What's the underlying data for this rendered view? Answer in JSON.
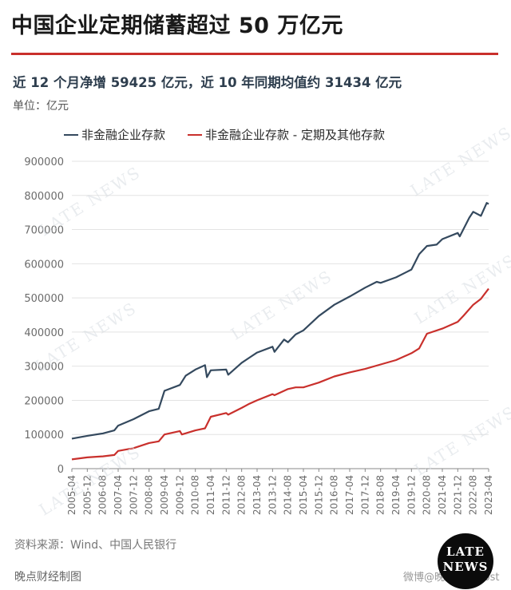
{
  "header": {
    "title": "中国企业定期储蓄超过 50 万亿元",
    "subtitle": "近 12 个月净增 59425 亿元，近 10 年同期均值约 31434 亿元",
    "unit": "单位：亿元"
  },
  "footer": {
    "source": "资料来源：Wind、中国人民银行",
    "credit": "晚点财经制图",
    "brand_line1": "LATE",
    "brand_line2": "NEWS",
    "weibo": "微博@晚点LatePost"
  },
  "watermark": "LATE NEWS",
  "colors": {
    "series0": "#34495e",
    "series1": "#c9302c",
    "grid": "#e3e3e3",
    "axis": "#888888"
  },
  "chart_data": {
    "type": "line",
    "yticks": [
      0,
      100000,
      200000,
      300000,
      400000,
      500000,
      600000,
      700000,
      800000,
      900000
    ],
    "ylim": [
      0,
      900000
    ],
    "xlim": [
      "2005-04",
      "2023-04"
    ],
    "xticks": [
      "2005-04",
      "2005-12",
      "2006-08",
      "2007-04",
      "2007-12",
      "2008-08",
      "2009-04",
      "2009-12",
      "2010-08",
      "2011-04",
      "2011-12",
      "2012-08",
      "2013-04",
      "2013-12",
      "2014-08",
      "2015-04",
      "2015-12",
      "2016-08",
      "2017-04",
      "2017-12",
      "2018-08",
      "2019-04",
      "2019-12",
      "2020-08",
      "2021-04",
      "2021-12",
      "2022-08",
      "2023-04"
    ],
    "series": [
      {
        "name": "非金融企业存款",
        "points": [
          [
            "2005-04",
            88000
          ],
          [
            "2005-12",
            96000
          ],
          [
            "2006-08",
            103000
          ],
          [
            "2007-02",
            112000
          ],
          [
            "2007-04",
            126000
          ],
          [
            "2007-12",
            145000
          ],
          [
            "2008-08",
            168000
          ],
          [
            "2009-01",
            175000
          ],
          [
            "2009-04",
            228000
          ],
          [
            "2009-12",
            245000
          ],
          [
            "2010-03",
            272000
          ],
          [
            "2010-08",
            290000
          ],
          [
            "2011-01",
            303000
          ],
          [
            "2011-02",
            268000
          ],
          [
            "2011-04",
            288000
          ],
          [
            "2011-12",
            290000
          ],
          [
            "2012-01",
            275000
          ],
          [
            "2012-08",
            310000
          ],
          [
            "2012-12",
            325000
          ],
          [
            "2013-04",
            340000
          ],
          [
            "2013-12",
            357000
          ],
          [
            "2014-01",
            342000
          ],
          [
            "2014-06",
            378000
          ],
          [
            "2014-08",
            370000
          ],
          [
            "2014-12",
            393000
          ],
          [
            "2015-04",
            405000
          ],
          [
            "2015-12",
            447000
          ],
          [
            "2016-08",
            480000
          ],
          [
            "2017-04",
            504000
          ],
          [
            "2017-12",
            530000
          ],
          [
            "2018-06",
            547000
          ],
          [
            "2018-08",
            544000
          ],
          [
            "2019-04",
            560000
          ],
          [
            "2019-12",
            583000
          ],
          [
            "2020-04",
            628000
          ],
          [
            "2020-08",
            652000
          ],
          [
            "2021-01",
            656000
          ],
          [
            "2021-04",
            672000
          ],
          [
            "2021-12",
            690000
          ],
          [
            "2022-01",
            680000
          ],
          [
            "2022-06",
            735000
          ],
          [
            "2022-08",
            752000
          ],
          [
            "2022-12",
            740000
          ],
          [
            "2023-03",
            778000
          ],
          [
            "2023-04",
            775000
          ]
        ]
      },
      {
        "name": "非金融企业存款 - 定期及其他存款",
        "points": [
          [
            "2005-04",
            27000
          ],
          [
            "2005-12",
            33000
          ],
          [
            "2006-08",
            36000
          ],
          [
            "2007-02",
            40000
          ],
          [
            "2007-04",
            52000
          ],
          [
            "2007-12",
            60000
          ],
          [
            "2008-08",
            75000
          ],
          [
            "2009-01",
            80000
          ],
          [
            "2009-04",
            100000
          ],
          [
            "2009-12",
            110000
          ],
          [
            "2010-01",
            100000
          ],
          [
            "2010-08",
            112000
          ],
          [
            "2011-01",
            118000
          ],
          [
            "2011-04",
            152000
          ],
          [
            "2011-12",
            163000
          ],
          [
            "2012-01",
            158000
          ],
          [
            "2012-08",
            178000
          ],
          [
            "2012-12",
            190000
          ],
          [
            "2013-04",
            200000
          ],
          [
            "2013-12",
            218000
          ],
          [
            "2014-01",
            215000
          ],
          [
            "2014-08",
            233000
          ],
          [
            "2014-12",
            238000
          ],
          [
            "2015-04",
            238000
          ],
          [
            "2015-12",
            252000
          ],
          [
            "2016-08",
            270000
          ],
          [
            "2017-04",
            282000
          ],
          [
            "2017-12",
            292000
          ],
          [
            "2018-08",
            305000
          ],
          [
            "2019-04",
            318000
          ],
          [
            "2019-12",
            338000
          ],
          [
            "2020-04",
            352000
          ],
          [
            "2020-08",
            395000
          ],
          [
            "2021-04",
            410000
          ],
          [
            "2021-12",
            430000
          ],
          [
            "2022-03",
            448000
          ],
          [
            "2022-08",
            480000
          ],
          [
            "2022-12",
            497000
          ],
          [
            "2023-01",
            505000
          ],
          [
            "2023-04",
            527000
          ]
        ]
      }
    ]
  }
}
